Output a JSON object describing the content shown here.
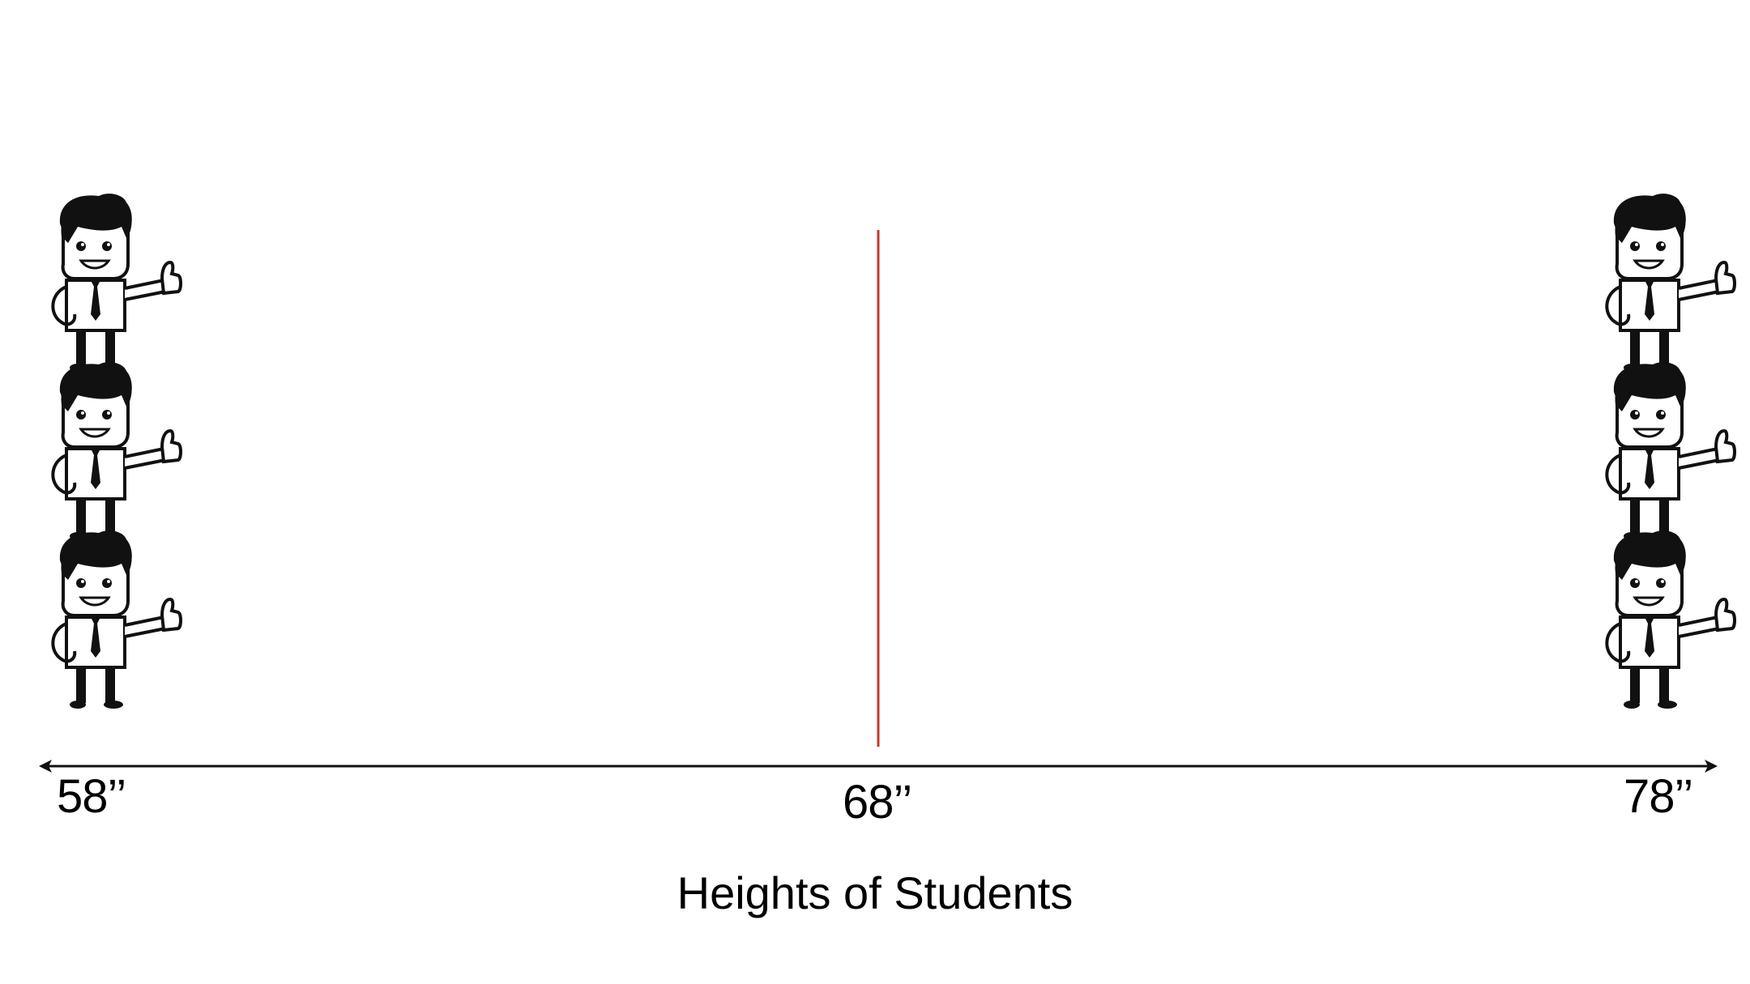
{
  "title": "Heights of Students",
  "axis": {
    "left_label": "58’’",
    "middle_label": "68’’",
    "right_label": "78’’"
  },
  "marker_color": "#c0392b",
  "figures": {
    "left_count": 3,
    "right_count": 3,
    "icon": "businessman-thumbs-up-icon"
  }
}
